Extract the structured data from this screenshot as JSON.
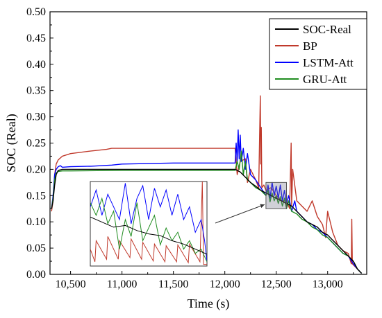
{
  "chart_data": {
    "type": "line",
    "title": "",
    "xlabel": "Time (s)",
    "ylabel": "SOC (Real)",
    "xlim": [
      10300,
      13380
    ],
    "ylim": [
      0,
      0.5
    ],
    "xticks": [
      10500,
      11000,
      11500,
      12000,
      12500,
      13000
    ],
    "xtick_labels": [
      "10,500",
      "11,000",
      "11,500",
      "12,000",
      "12,500",
      "13,000"
    ],
    "yticks": [
      0,
      0.05,
      0.1,
      0.15,
      0.2,
      0.25,
      0.3,
      0.35,
      0.4,
      0.45,
      0.5
    ],
    "ytick_labels": [
      "0.00",
      "0.05",
      "0.10",
      "0.15",
      "0.20",
      "0.25",
      "0.30",
      "0.35",
      "0.40",
      "0.45",
      "0.50"
    ],
    "legend_position": "top-right",
    "series": [
      {
        "name": "SOC-Real",
        "color": "#000000",
        "x": [
          10315,
          10330,
          10345,
          10360,
          10380,
          10420,
          10500,
          11000,
          11500,
          12000,
          12100,
          12150,
          12200,
          12250,
          12300,
          12350,
          12400,
          12450,
          12500,
          12550,
          12600,
          12650,
          12700,
          12750,
          12800,
          12850,
          12900,
          12950,
          13000,
          13050,
          13100,
          13150,
          13200,
          13250,
          13290,
          13330
        ],
        "y": [
          0.125,
          0.14,
          0.17,
          0.19,
          0.198,
          0.2,
          0.2,
          0.2,
          0.2,
          0.2,
          0.2,
          0.195,
          0.185,
          0.175,
          0.168,
          0.16,
          0.155,
          0.15,
          0.145,
          0.14,
          0.135,
          0.13,
          0.12,
          0.11,
          0.1,
          0.095,
          0.09,
          0.08,
          0.075,
          0.065,
          0.055,
          0.045,
          0.035,
          0.025,
          0.01,
          0.002
        ]
      },
      {
        "name": "BP",
        "color": "#c0392b",
        "x": [
          10315,
          10330,
          10345,
          10360,
          10380,
          10420,
          10500,
          10700,
          10850,
          10900,
          11000,
          11500,
          12000,
          12100,
          12120,
          12150,
          12200,
          12220,
          12250,
          12300,
          12330,
          12345,
          12350,
          12355,
          12360,
          12380,
          12400,
          12450,
          12500,
          12550,
          12600,
          12630,
          12645,
          12650,
          12660,
          12700,
          12750,
          12800,
          12850,
          12900,
          12950,
          12980,
          13000,
          13050,
          13100,
          13150,
          13200,
          13230,
          13235,
          13240,
          13250,
          13290,
          13330
        ],
        "y": [
          0.12,
          0.14,
          0.19,
          0.21,
          0.218,
          0.225,
          0.23,
          0.235,
          0.238,
          0.24,
          0.24,
          0.24,
          0.24,
          0.24,
          0.19,
          0.215,
          0.22,
          0.175,
          0.2,
          0.18,
          0.165,
          0.34,
          0.21,
          0.28,
          0.165,
          0.17,
          0.16,
          0.165,
          0.15,
          0.14,
          0.14,
          0.125,
          0.25,
          0.13,
          0.2,
          0.14,
          0.13,
          0.12,
          0.14,
          0.11,
          0.095,
          0.07,
          0.12,
          0.08,
          0.055,
          0.045,
          0.04,
          0.02,
          0.105,
          0.02,
          0.018,
          0.01,
          0.002
        ]
      },
      {
        "name": "LSTM-Att",
        "color": "#0000ff",
        "x": [
          10315,
          10330,
          10345,
          10360,
          10380,
          10400,
          10420,
          10500,
          10700,
          10900,
          11000,
          11500,
          12000,
          12100,
          12110,
          12120,
          12130,
          12140,
          12150,
          12160,
          12180,
          12200,
          12220,
          12250,
          12300,
          12350,
          12400,
          12420,
          12440,
          12460,
          12480,
          12500,
          12520,
          12540,
          12560,
          12580,
          12600,
          12620,
          12650,
          12680,
          12700,
          12750,
          12800,
          12850,
          12900,
          12950,
          13000,
          13050,
          13100,
          13150,
          13200,
          13250,
          13290,
          13330
        ],
        "y": [
          0.125,
          0.15,
          0.19,
          0.2,
          0.205,
          0.207,
          0.204,
          0.205,
          0.206,
          0.208,
          0.21,
          0.212,
          0.212,
          0.212,
          0.25,
          0.215,
          0.275,
          0.22,
          0.265,
          0.215,
          0.24,
          0.2,
          0.23,
          0.19,
          0.18,
          0.165,
          0.15,
          0.17,
          0.145,
          0.175,
          0.15,
          0.168,
          0.145,
          0.17,
          0.14,
          0.16,
          0.135,
          0.15,
          0.12,
          0.14,
          0.12,
          0.11,
          0.1,
          0.095,
          0.085,
          0.08,
          0.07,
          0.06,
          0.05,
          0.04,
          0.035,
          0.02,
          0.01,
          0.002
        ]
      },
      {
        "name": "GRU-Att",
        "color": "#1e8c1e",
        "x": [
          10315,
          10330,
          10345,
          10360,
          10380,
          10420,
          10500,
          11000,
          11500,
          12000,
          12100,
          12120,
          12140,
          12160,
          12180,
          12200,
          12220,
          12250,
          12300,
          12350,
          12400,
          12420,
          12440,
          12460,
          12480,
          12500,
          12520,
          12540,
          12560,
          12580,
          12600,
          12620,
          12650,
          12700,
          12750,
          12800,
          12850,
          12900,
          12950,
          13000,
          13050,
          13100,
          13150,
          13200,
          13250,
          13290,
          13330
        ],
        "y": [
          0.125,
          0.145,
          0.18,
          0.193,
          0.196,
          0.197,
          0.197,
          0.198,
          0.198,
          0.198,
          0.198,
          0.215,
          0.2,
          0.235,
          0.19,
          0.215,
          0.18,
          0.175,
          0.165,
          0.16,
          0.15,
          0.16,
          0.138,
          0.155,
          0.14,
          0.15,
          0.135,
          0.148,
          0.13,
          0.145,
          0.125,
          0.14,
          0.12,
          0.115,
          0.105,
          0.1,
          0.09,
          0.085,
          0.075,
          0.07,
          0.06,
          0.05,
          0.04,
          0.035,
          0.025,
          0.01,
          0.002
        ]
      }
    ],
    "inset": {
      "zoom_xlim": [
        12400,
        12600
      ],
      "zoom_ylim": [
        0.125,
        0.175
      ],
      "series": [
        {
          "name": "SOC-Real",
          "color": "#000000",
          "x": [
            0,
            10,
            20,
            30,
            40,
            50,
            60,
            70,
            80,
            90,
            100
          ],
          "y": [
            0.58,
            0.52,
            0.46,
            0.48,
            0.42,
            0.38,
            0.36,
            0.3,
            0.26,
            0.2,
            0.14
          ]
        },
        {
          "name": "BP",
          "color": "#c0392b",
          "x": [
            0,
            4,
            5,
            14,
            15,
            24,
            25,
            34,
            35,
            44,
            45,
            54,
            55,
            64,
            65,
            74,
            75,
            84,
            85,
            94,
            96,
            97,
            100
          ],
          "y": [
            0.2,
            0.05,
            0.3,
            0.08,
            0.35,
            0.08,
            0.3,
            0.1,
            0.32,
            0.08,
            0.28,
            0.06,
            0.26,
            0.05,
            0.24,
            0.05,
            0.25,
            0.04,
            0.26,
            0.05,
            1.0,
            0.02,
            0.02
          ]
        },
        {
          "name": "LSTM-Att",
          "color": "#0000ff",
          "x": [
            0,
            5,
            10,
            15,
            20,
            25,
            30,
            35,
            40,
            45,
            50,
            55,
            60,
            65,
            70,
            75,
            80,
            85,
            90,
            95,
            98,
            100
          ],
          "y": [
            0.7,
            0.9,
            0.6,
            0.85,
            0.7,
            0.55,
            0.98,
            0.5,
            0.8,
            0.95,
            0.55,
            0.92,
            0.7,
            0.9,
            0.6,
            0.85,
            0.55,
            0.7,
            0.4,
            0.55,
            0.3,
            0.05
          ]
        },
        {
          "name": "GRU-Att",
          "color": "#1e8c1e",
          "x": [
            0,
            5,
            10,
            15,
            20,
            25,
            30,
            35,
            40,
            45,
            50,
            55,
            60,
            65,
            70,
            75,
            80,
            85,
            90,
            95,
            100
          ],
          "y": [
            0.75,
            0.6,
            0.8,
            0.5,
            0.65,
            0.2,
            0.55,
            0.35,
            0.75,
            0.3,
            0.45,
            0.6,
            0.25,
            0.45,
            0.3,
            0.4,
            0.2,
            0.3,
            0.15,
            0.2,
            0.05
          ]
        }
      ]
    }
  }
}
